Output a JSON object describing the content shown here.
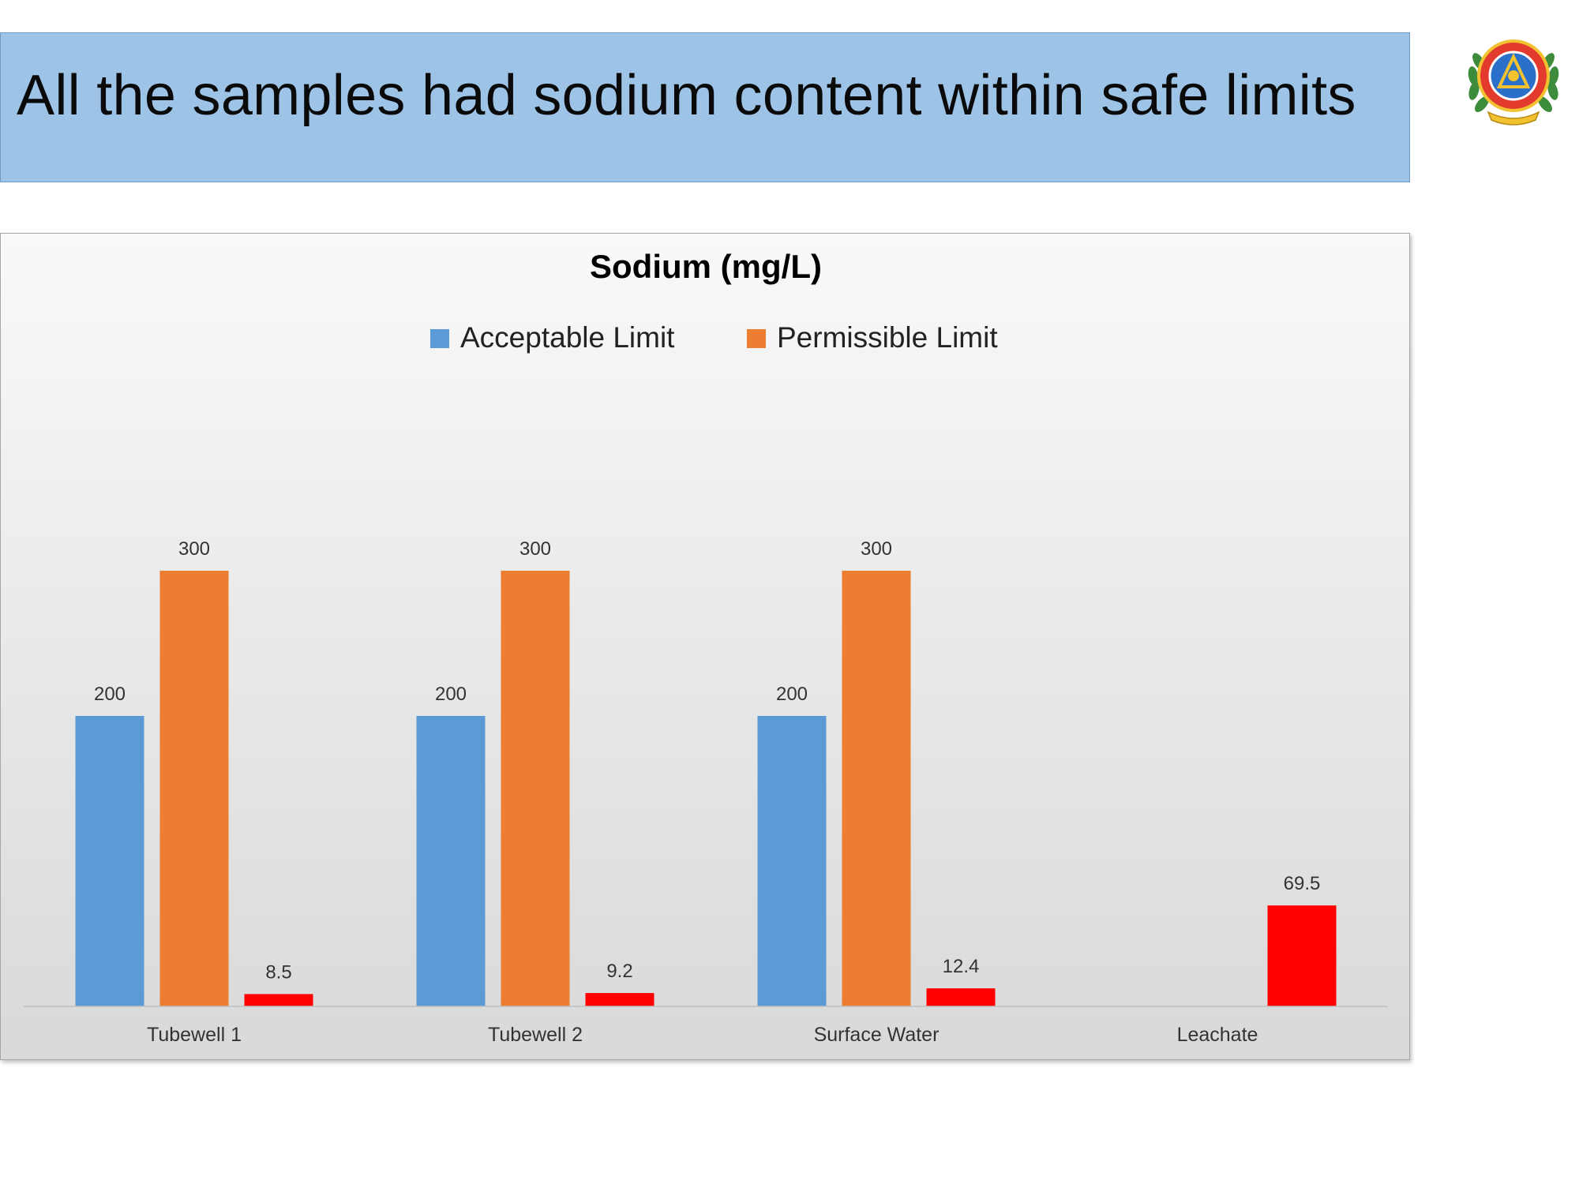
{
  "slide": {
    "title": "All the samples had sodium content within safe limits"
  },
  "logo": {
    "icon": "institution-emblem-icon"
  },
  "chart_data": {
    "type": "bar",
    "title": "Sodium (mg/L)",
    "xlabel": "",
    "ylabel": "",
    "categories": [
      "Tubewell 1",
      "Tubewell 2",
      "Surface Water",
      "Leachate"
    ],
    "series": [
      {
        "name": "Acceptable Limit",
        "color": "#5b9bd5",
        "values": [
          200,
          200,
          200,
          null
        ]
      },
      {
        "name": "Permissible Limit",
        "color": "#ed7d31",
        "values": [
          300,
          300,
          300,
          null
        ]
      },
      {
        "color": "#ff0000",
        "values": [
          8.5,
          9.2,
          12.4,
          69.5
        ]
      }
    ],
    "ylim": [
      0,
      375
    ],
    "grid": false,
    "legend": "top",
    "data_labels": true
  }
}
